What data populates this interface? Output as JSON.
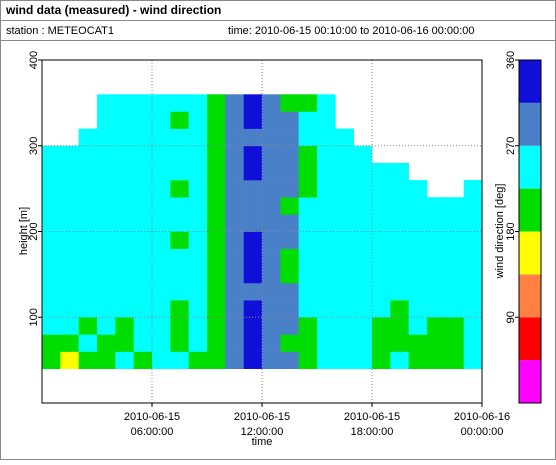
{
  "header": {
    "title": "wind data (measured) - wind direction",
    "station": "station : METEOCAT1",
    "time": "time: 2010-06-15 00:10:00 to 2010-06-16 00:00:00"
  },
  "chart_data": {
    "type": "heatmap",
    "x_label": "time",
    "y_label": "height [m]",
    "x_bins": [
      0,
      1,
      2,
      3,
      4,
      5,
      6,
      7,
      8,
      9,
      10,
      11,
      12,
      13,
      14,
      15,
      16,
      17,
      18,
      19,
      20,
      21,
      22,
      23,
      24
    ],
    "y_bins": [
      40,
      60,
      80,
      100,
      120,
      140,
      160,
      180,
      200,
      220,
      240,
      260,
      280,
      300,
      320,
      340,
      360
    ],
    "xlim": [
      0,
      24
    ],
    "xticks": [
      {
        "value": 6,
        "label": "2010-06-15 06:00:00"
      },
      {
        "value": 12,
        "label": "2010-06-15 12:00:00"
      },
      {
        "value": 18,
        "label": "2010-06-15 18:00:00"
      },
      {
        "value": 24,
        "label": "2010-06-16 00:00:00"
      }
    ],
    "ylim": [
      0,
      400
    ],
    "yticks": [
      100,
      200,
      300,
      400
    ],
    "grid": true,
    "colorbar": {
      "label": "wind direction [deg]",
      "bounds": [
        0,
        45,
        90,
        135,
        180,
        225,
        270,
        315,
        360
      ],
      "colors": [
        "#ff00ff",
        "#ff0000",
        "#ff8040",
        "#ffff00",
        "#00dd00",
        "#00ffff",
        "#4a80c8",
        "#1010d8"
      ],
      "ticks": [
        90,
        180,
        270,
        360
      ]
    },
    "values": [
      [
        200,
        160,
        200,
        200,
        250,
        200,
        250,
        250,
        200,
        200,
        290,
        330,
        290,
        290,
        200,
        250,
        250,
        250,
        200,
        250,
        200,
        200,
        200,
        250
      ],
      [
        200,
        200,
        250,
        200,
        200,
        250,
        250,
        200,
        250,
        200,
        290,
        330,
        290,
        200,
        200,
        250,
        250,
        250,
        200,
        200,
        200,
        200,
        200,
        250
      ],
      [
        250,
        250,
        200,
        250,
        200,
        250,
        250,
        200,
        250,
        200,
        290,
        330,
        290,
        290,
        200,
        250,
        250,
        250,
        200,
        200,
        250,
        200,
        200,
        250
      ],
      [
        250,
        250,
        250,
        250,
        250,
        250,
        250,
        200,
        250,
        200,
        290,
        330,
        290,
        290,
        250,
        250,
        250,
        250,
        250,
        200,
        250,
        250,
        250,
        250
      ],
      [
        250,
        250,
        250,
        250,
        250,
        250,
        250,
        250,
        250,
        200,
        290,
        290,
        290,
        290,
        250,
        250,
        250,
        250,
        250,
        250,
        250,
        250,
        250,
        250
      ],
      [
        250,
        250,
        250,
        250,
        250,
        250,
        250,
        250,
        250,
        200,
        290,
        330,
        290,
        200,
        250,
        250,
        250,
        250,
        250,
        250,
        250,
        250,
        250,
        250
      ],
      [
        250,
        250,
        250,
        250,
        250,
        250,
        250,
        250,
        250,
        200,
        290,
        330,
        290,
        200,
        250,
        250,
        250,
        250,
        250,
        250,
        250,
        250,
        250,
        250
      ],
      [
        250,
        250,
        250,
        250,
        250,
        250,
        250,
        200,
        250,
        200,
        290,
        330,
        290,
        290,
        250,
        250,
        250,
        250,
        250,
        250,
        250,
        250,
        250,
        250
      ],
      [
        250,
        250,
        250,
        250,
        250,
        250,
        250,
        250,
        250,
        200,
        290,
        290,
        290,
        290,
        250,
        250,
        250,
        250,
        250,
        250,
        250,
        250,
        250,
        250
      ],
      [
        250,
        250,
        250,
        250,
        250,
        250,
        250,
        250,
        250,
        200,
        290,
        290,
        290,
        200,
        250,
        250,
        250,
        250,
        250,
        250,
        250,
        250,
        250,
        250
      ],
      [
        250,
        250,
        250,
        250,
        250,
        250,
        250,
        200,
        250,
        200,
        290,
        290,
        290,
        290,
        200,
        250,
        250,
        250,
        250,
        250,
        250,
        null,
        null,
        250
      ],
      [
        250,
        250,
        250,
        250,
        250,
        250,
        250,
        250,
        250,
        200,
        290,
        330,
        290,
        290,
        200,
        250,
        250,
        250,
        250,
        250,
        null,
        null,
        null,
        null
      ],
      [
        250,
        250,
        250,
        250,
        250,
        250,
        250,
        250,
        250,
        200,
        290,
        330,
        290,
        290,
        200,
        250,
        250,
        250,
        null,
        null,
        null,
        null,
        null,
        null
      ],
      [
        null,
        null,
        250,
        250,
        250,
        250,
        250,
        250,
        250,
        200,
        290,
        290,
        290,
        290,
        250,
        250,
        250,
        null,
        null,
        null,
        null,
        null,
        null,
        null
      ],
      [
        null,
        null,
        null,
        250,
        250,
        250,
        250,
        200,
        250,
        200,
        290,
        330,
        290,
        290,
        250,
        250,
        null,
        null,
        null,
        null,
        null,
        null,
        null,
        null
      ],
      [
        null,
        null,
        null,
        250,
        250,
        250,
        250,
        250,
        250,
        200,
        290,
        330,
        290,
        200,
        200,
        250,
        null,
        null,
        null,
        null,
        null,
        null,
        null,
        null
      ]
    ]
  }
}
